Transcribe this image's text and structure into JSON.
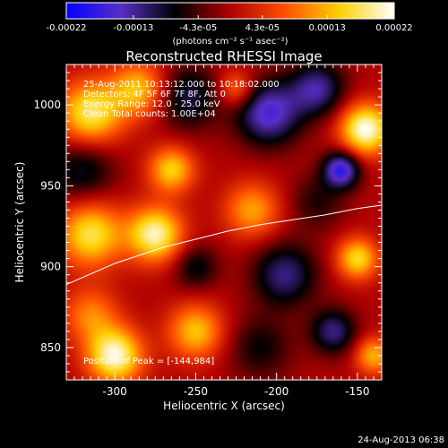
{
  "chart_data": {
    "type": "heatmap",
    "title": "Reconstructed RHESSI Image",
    "xlabel": "Heliocentric X (arcsec)",
    "ylabel": "Heliocentric Y (arcsec)",
    "xlim": [
      -330,
      -135
    ],
    "ylim": [
      830,
      1025
    ],
    "x_ticks": [
      -300,
      -250,
      -200,
      -150
    ],
    "y_ticks": [
      850,
      900,
      950,
      1000
    ],
    "colorbar": {
      "tick_labels": [
        "-0.00022",
        "-0.00013",
        "-4.3e-05",
        "4.3e-05",
        "0.00013",
        "0.00022"
      ],
      "tick_values": [
        -0.00022,
        -0.00013,
        -4.3e-05,
        4.3e-05,
        0.00013,
        0.00022
      ],
      "range": [
        -0.00022,
        0.00022
      ],
      "unit_label": "(photons cm⁻² s⁻¹ asec⁻²)",
      "colors": [
        "#0000ff",
        "#5a2fc8",
        "#000000",
        "#b00000",
        "#ff5000",
        "#ffd000",
        "#ffffff"
      ]
    },
    "annotations": [
      "25-Aug-2011 10:13:12.000 to 10:18:02.000",
      "Detectors: 4F 5F 6F 7F 8F, Att 0",
      "Energy Range: 12.0 - 25.0 keV",
      "Clean    Total counts: 1.00E+04",
      "Position of Peak = [-144,984]"
    ],
    "limb_curve": {
      "x": [
        -330,
        -300,
        -270,
        -250,
        -230,
        -210,
        -190,
        -170,
        -150,
        -135
      ],
      "y": [
        889,
        902,
        912,
        917,
        922,
        926,
        929,
        932,
        936,
        938
      ]
    },
    "sources": [
      {
        "x": -315,
        "y": 995,
        "amp": 0.00018,
        "sigma": 14
      },
      {
        "x": -285,
        "y": 1010,
        "amp": 0.00014,
        "sigma": 12
      },
      {
        "x": -255,
        "y": 1005,
        "amp": -0.0001,
        "sigma": 14
      },
      {
        "x": -205,
        "y": 995,
        "amp": -0.00016,
        "sigma": 14
      },
      {
        "x": -175,
        "y": 1010,
        "amp": -0.00013,
        "sigma": 12
      },
      {
        "x": -160,
        "y": 960,
        "amp": -0.00018,
        "sigma": 8
      },
      {
        "x": -145,
        "y": 985,
        "amp": 0.00022,
        "sigma": 11
      },
      {
        "x": -225,
        "y": 1010,
        "amp": 0.0001,
        "sigma": 8
      },
      {
        "x": -320,
        "y": 960,
        "amp": -9e-05,
        "sigma": 14
      },
      {
        "x": -265,
        "y": 960,
        "amp": 0.00015,
        "sigma": 10
      },
      {
        "x": -315,
        "y": 920,
        "amp": 0.00017,
        "sigma": 14
      },
      {
        "x": -275,
        "y": 920,
        "amp": 0.0002,
        "sigma": 12
      },
      {
        "x": -215,
        "y": 935,
        "amp": 0.00012,
        "sigma": 12
      },
      {
        "x": -175,
        "y": 940,
        "amp": -6e-05,
        "sigma": 12
      },
      {
        "x": -250,
        "y": 900,
        "amp": -8e-05,
        "sigma": 10
      },
      {
        "x": -195,
        "y": 895,
        "amp": -0.00012,
        "sigma": 14
      },
      {
        "x": -150,
        "y": 905,
        "amp": 0.00016,
        "sigma": 9
      },
      {
        "x": -315,
        "y": 870,
        "amp": 0.0001,
        "sigma": 12
      },
      {
        "x": -300,
        "y": 845,
        "amp": 0.00021,
        "sigma": 12
      },
      {
        "x": -250,
        "y": 860,
        "amp": 0.00014,
        "sigma": 12
      },
      {
        "x": -210,
        "y": 850,
        "amp": -7e-05,
        "sigma": 14
      },
      {
        "x": -165,
        "y": 860,
        "amp": -0.00012,
        "sigma": 10
      },
      {
        "x": -140,
        "y": 845,
        "amp": 0.00013,
        "sigma": 8
      }
    ]
  },
  "footer": {
    "date": "24-Aug-2013 06:38"
  }
}
